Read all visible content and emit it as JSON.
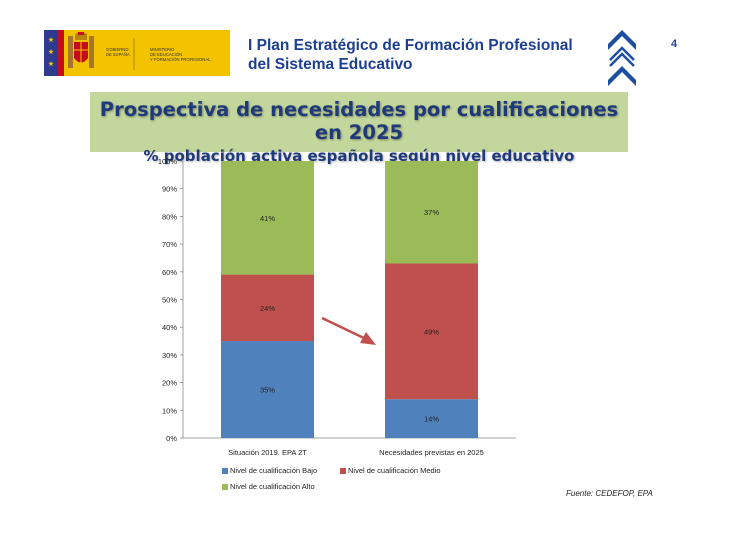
{
  "header": {
    "gov_label": "GOBIERNO DE ESPAÑA",
    "gov_line1": "GOBIERNO",
    "gov_line2": "DE ESPAÑA",
    "ministry_line1": "MINISTERIO",
    "ministry_line2": "DE EDUCACIÓN",
    "ministry_line3": "Y FORMACIÓN PROFESIONAL",
    "title_line1": "I Plan Estratégico de Formación Profesional",
    "title_line2": "del Sistema Educativo",
    "page_number": "4"
  },
  "banner": {
    "title": "Prospectiva de necesidades por cualificaciones en 2025",
    "subtitle": "% población activa española según nivel educativo"
  },
  "chart_data": {
    "type": "bar",
    "stacked": true,
    "categories": [
      "Situación 2019. EPA 2T",
      "Necesidades previstas en 2025"
    ],
    "series": [
      {
        "name": "Nivel de cualificación Bajo",
        "color": "#4f81bd",
        "values": [
          35,
          14
        ],
        "labels": [
          "35%",
          "14%"
        ]
      },
      {
        "name": "Nivel de cualificación Medio",
        "color": "#c0504d",
        "values": [
          24,
          49
        ],
        "labels": [
          "24%",
          "49%"
        ]
      },
      {
        "name": "Nivel de cualificación Alto",
        "color": "#9bbb59",
        "values": [
          41,
          37
        ],
        "labels": [
          "41%",
          "37%"
        ]
      }
    ],
    "ylim": [
      0,
      100
    ],
    "yticks": [
      "0%",
      "10%",
      "20%",
      "30%",
      "40%",
      "50%",
      "60%",
      "70%",
      "80%",
      "90%",
      "100%"
    ],
    "grid": false,
    "legend_position": "bottom",
    "annotation_arrow_color": "#c0504d"
  },
  "source": "Fuente: CEDEFOP, EPA"
}
